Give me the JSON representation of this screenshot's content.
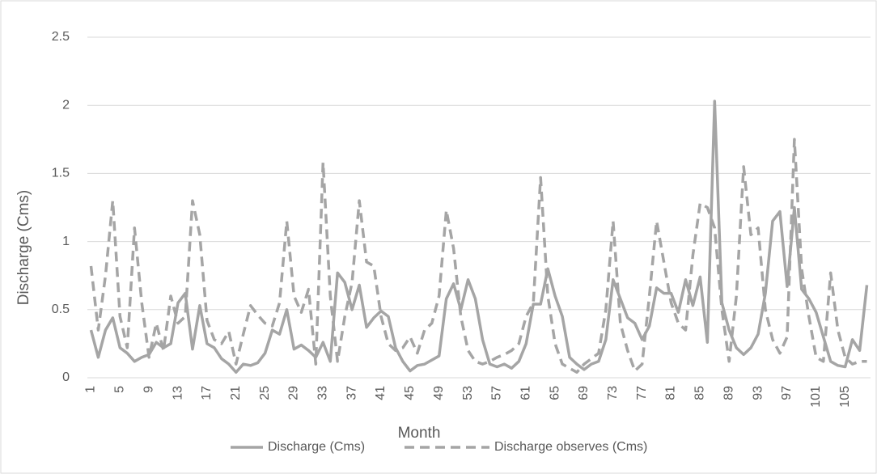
{
  "chart_data": {
    "type": "line",
    "x_label": "Month",
    "y_label": "Discharge (Cms)",
    "categories": [
      "1",
      null,
      null,
      null,
      "5",
      null,
      null,
      null,
      "9",
      null,
      null,
      null,
      "13",
      null,
      null,
      null,
      "17",
      null,
      null,
      null,
      "21",
      null,
      null,
      null,
      "25",
      null,
      null,
      null,
      "29",
      null,
      null,
      null,
      "33",
      null,
      null,
      null,
      "37",
      null,
      null,
      null,
      "41",
      null,
      null,
      null,
      "45",
      null,
      null,
      null,
      "49",
      null,
      null,
      null,
      "53",
      null,
      null,
      null,
      "57",
      null,
      null,
      null,
      "61",
      null,
      null,
      null,
      "65",
      null,
      null,
      null,
      "69",
      null,
      null,
      null,
      "73",
      null,
      null,
      null,
      "77",
      null,
      null,
      null,
      "81",
      null,
      null,
      null,
      "85",
      null,
      null,
      null,
      "89",
      null,
      null,
      null,
      "93",
      null,
      null,
      null,
      "97",
      null,
      null,
      null,
      "101",
      null,
      null,
      null,
      "105",
      null,
      null,
      null
    ],
    "series": [
      {
        "name": "Discharge (Cms)",
        "color": "#a5a5a5",
        "dash": false,
        "values": [
          0.35,
          0.15,
          0.35,
          0.44,
          0.22,
          0.18,
          0.12,
          0.15,
          0.17,
          0.26,
          0.22,
          0.25,
          0.55,
          0.62,
          0.21,
          0.53,
          0.25,
          0.22,
          0.14,
          0.1,
          0.04,
          0.1,
          0.09,
          0.11,
          0.18,
          0.35,
          0.32,
          0.5,
          0.21,
          0.24,
          0.2,
          0.15,
          0.26,
          0.12,
          0.77,
          0.7,
          0.5,
          0.68,
          0.37,
          0.44,
          0.49,
          0.45,
          0.22,
          0.12,
          0.05,
          0.09,
          0.1,
          0.13,
          0.16,
          0.58,
          0.69,
          0.5,
          0.72,
          0.58,
          0.28,
          0.1,
          0.08,
          0.1,
          0.07,
          0.12,
          0.25,
          0.54,
          0.54,
          0.8,
          0.6,
          0.45,
          0.15,
          0.1,
          0.06,
          0.1,
          0.12,
          0.28,
          0.72,
          0.58,
          0.44,
          0.4,
          0.28,
          0.38,
          0.66,
          0.62,
          0.62,
          0.48,
          0.72,
          0.53,
          0.74,
          0.26,
          2.03,
          0.55,
          0.35,
          0.22,
          0.17,
          0.22,
          0.32,
          0.62,
          1.15,
          1.22,
          0.67,
          1.25,
          0.65,
          0.58,
          0.48,
          0.3,
          0.12,
          0.09,
          0.08,
          0.28,
          0.2,
          0.68
        ]
      },
      {
        "name": "Discharge observes (Cms)",
        "color": "#a5a5a5",
        "dash": true,
        "values": [
          0.82,
          0.35,
          0.75,
          1.3,
          0.45,
          0.22,
          1.1,
          0.55,
          0.15,
          0.4,
          0.2,
          0.6,
          0.4,
          0.45,
          1.3,
          1.05,
          0.42,
          0.28,
          0.25,
          0.34,
          0.1,
          0.32,
          0.53,
          0.46,
          0.4,
          0.38,
          0.55,
          1.15,
          0.6,
          0.48,
          0.65,
          0.1,
          1.58,
          0.6,
          0.12,
          0.45,
          0.7,
          1.3,
          0.85,
          0.82,
          0.45,
          0.25,
          0.2,
          0.22,
          0.3,
          0.18,
          0.35,
          0.4,
          0.6,
          1.23,
          0.95,
          0.45,
          0.2,
          0.12,
          0.1,
          0.12,
          0.15,
          0.17,
          0.2,
          0.25,
          0.45,
          0.55,
          1.47,
          0.6,
          0.25,
          0.1,
          0.07,
          0.04,
          0.1,
          0.14,
          0.18,
          0.5,
          1.15,
          0.4,
          0.2,
          0.05,
          0.1,
          0.6,
          1.15,
          0.85,
          0.55,
          0.4,
          0.35,
          0.9,
          1.28,
          1.25,
          1.1,
          0.5,
          0.12,
          0.6,
          1.55,
          1.05,
          1.1,
          0.5,
          0.28,
          0.18,
          0.3,
          1.75,
          0.8,
          0.45,
          0.15,
          0.12,
          0.77,
          0.35,
          0.15,
          0.1,
          0.12,
          0.12
        ]
      }
    ],
    "ylim": [
      0,
      2.5
    ],
    "yticks": [
      0,
      0.5,
      1,
      1.5,
      2,
      2.5
    ],
    "grid": true,
    "legend": "bottom"
  }
}
